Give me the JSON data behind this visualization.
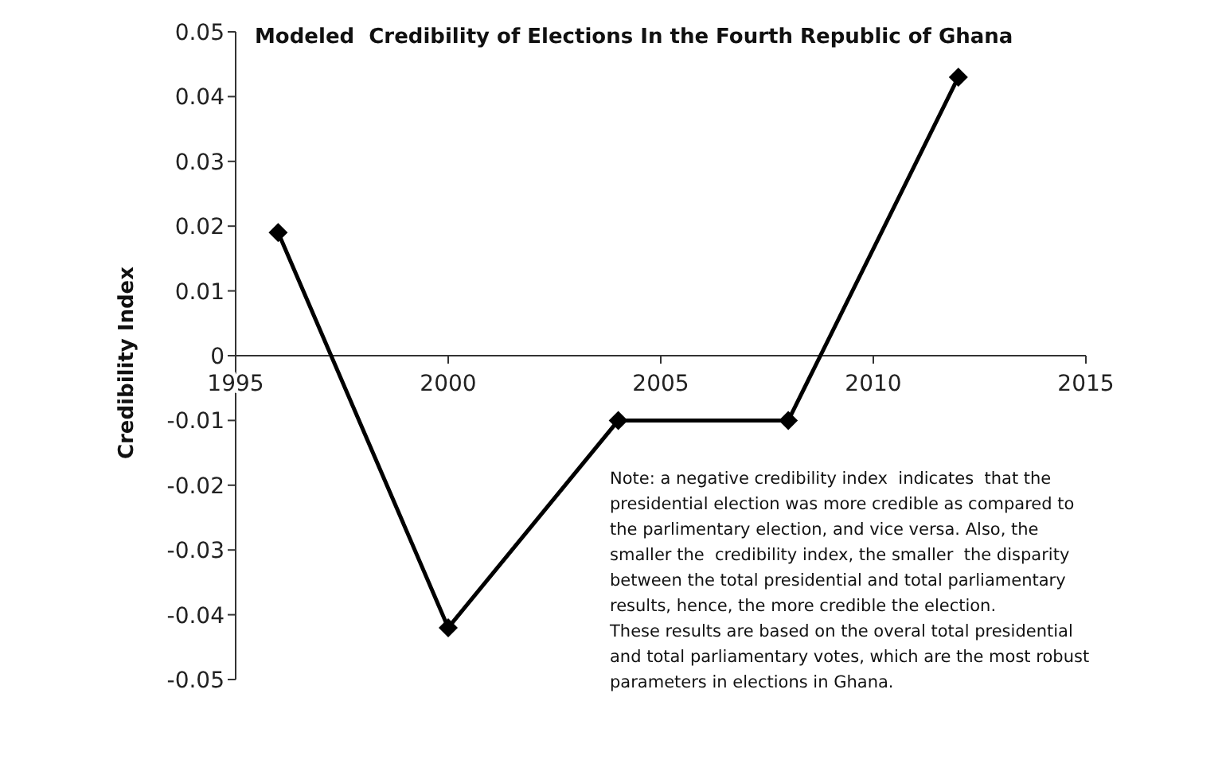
{
  "chart_data": {
    "type": "line",
    "title": "Modeled  Credibility of Elections In the Fourth Republic of Ghana",
    "ylabel": "Credibility Index",
    "x": [
      1996,
      2000,
      2004,
      2008,
      2012
    ],
    "values": [
      0.019,
      -0.042,
      -0.01,
      -0.01,
      0.043
    ],
    "color": "#000000",
    "marker": "diamond",
    "line_style": "solid",
    "grid": false,
    "legend": false,
    "xlim": [
      1995,
      2015
    ],
    "xticks": [
      1995,
      2000,
      2005,
      2010,
      2015
    ],
    "ylim": [
      -0.05,
      0.05
    ],
    "yticks": [
      -0.05,
      -0.04,
      -0.03,
      -0.02,
      -0.01,
      0,
      0.01,
      0.02,
      0.03,
      0.04,
      0.05
    ],
    "annotations": [
      "Note: a negative credibility index  indicates  that the presidential election was more credible as compared to  the parlimentary election, and vice versa. Also, the smaller the  credibility index, the smaller  the disparity between the total presidential and total parliamentary results, hence, the more credible the election.\nThese results are based on the overal total presidential and total parliamentary votes, which are the most robust parameters in elections in Ghana."
    ]
  }
}
